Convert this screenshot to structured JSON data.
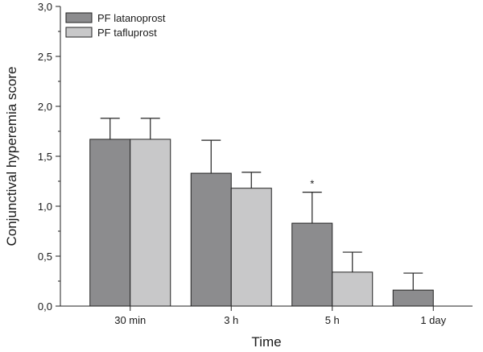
{
  "chart_data": {
    "type": "bar",
    "title": "",
    "xlabel": "Time",
    "ylabel": "Conjunctival hyperemia score",
    "categories": [
      "30 min",
      "3 h",
      "5 h",
      "1 day"
    ],
    "ylim": [
      0,
      3.0
    ],
    "yticks": [
      "0,0",
      "0,5",
      "1,0",
      "1,5",
      "2,0",
      "2,5",
      "3,0"
    ],
    "grid": false,
    "legend_position": "top-left",
    "series": [
      {
        "name": "PF latanoprost",
        "color": "#8c8c8e",
        "values": [
          1.67,
          1.33,
          0.83,
          0.16
        ],
        "error_upper": [
          0.21,
          0.33,
          0.31,
          0.17
        ]
      },
      {
        "name": "PF tafluprost",
        "color": "#c8c8c9",
        "values": [
          1.67,
          1.18,
          0.34,
          0.0
        ],
        "error_upper": [
          0.21,
          0.16,
          0.2,
          0.0
        ]
      }
    ],
    "annotations": [
      {
        "text": "*",
        "category": "5 h",
        "series": "PF latanoprost"
      }
    ]
  }
}
